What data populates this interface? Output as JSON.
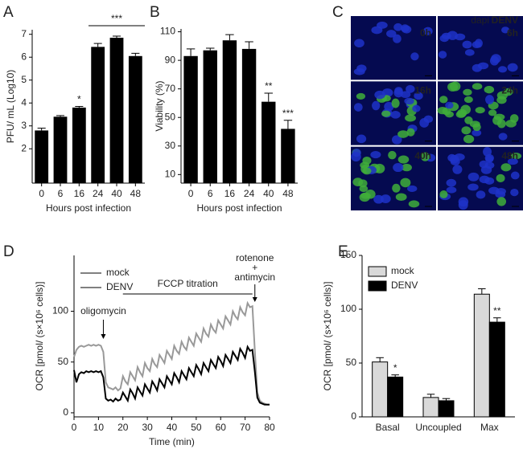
{
  "chart_data": [
    {
      "type": "bar",
      "panel": "A",
      "categories": [
        "0",
        "6",
        "16",
        "24",
        "40",
        "48"
      ],
      "values": [
        2.8,
        3.4,
        3.8,
        6.45,
        6.85,
        6.05
      ],
      "errors": [
        0.1,
        0.05,
        0.05,
        0.15,
        0.07,
        0.12
      ],
      "color": "#000000",
      "ylim": [
        0.5,
        7.2
      ],
      "yticks": [
        2,
        3,
        4,
        5,
        6,
        7
      ],
      "y_label": "PFU/ mL (Log10)",
      "x_label": "Hours post infection",
      "significance": [
        null,
        null,
        "*",
        null,
        null,
        null
      ],
      "bracket_label": "***"
    },
    {
      "type": "bar",
      "panel": "B",
      "categories": [
        "0",
        "6",
        "16",
        "24",
        "40",
        "48"
      ],
      "values": [
        93,
        97,
        104,
        98,
        61,
        42
      ],
      "errors": [
        5,
        1.5,
        4,
        5,
        6,
        6
      ],
      "color": "#000000",
      "ylim": [
        4,
        112
      ],
      "yticks": [
        10,
        30,
        50,
        70,
        90,
        110
      ],
      "y_label": "Viability (%)",
      "x_label": "Hours post infection",
      "significance": [
        null,
        null,
        null,
        null,
        "**",
        "***"
      ]
    },
    {
      "type": "image-grid",
      "panel": "C",
      "legend": [
        "dapi",
        "DENV"
      ],
      "legend_colors": [
        "#3f6fff",
        "#33cc33"
      ],
      "labels": [
        "0h",
        "6h",
        "16h",
        "24h",
        "40h",
        "48h"
      ]
    },
    {
      "type": "line",
      "panel": "D",
      "x_label": "Time (min)",
      "y_label": "OCR [pmol/ (s×10⁶ cells)]",
      "xlim": [
        0,
        80
      ],
      "xticks": [
        0,
        10,
        20,
        30,
        40,
        50,
        60,
        70,
        80
      ],
      "ylim": [
        -4,
        155
      ],
      "yticks": [
        0,
        50,
        100
      ],
      "annotations": [
        "oligomycin",
        "FCCP titration",
        "rotenone",
        "+",
        "antimycin"
      ],
      "x": [
        0,
        1,
        2,
        3,
        4,
        5,
        6,
        7,
        8,
        9,
        10,
        11,
        12,
        13,
        14,
        15,
        16,
        17,
        18,
        19,
        20,
        21,
        22,
        23,
        24,
        25,
        26,
        27,
        28,
        29,
        30,
        31,
        32,
        33,
        34,
        35,
        36,
        37,
        38,
        39,
        40,
        41,
        42,
        43,
        44,
        45,
        46,
        47,
        48,
        49,
        50,
        51,
        52,
        53,
        54,
        55,
        56,
        57,
        58,
        59,
        60,
        61,
        62,
        63,
        64,
        65,
        66,
        67,
        68,
        69,
        70,
        71,
        72,
        73,
        74,
        75,
        76,
        77,
        78,
        79,
        80
      ],
      "series": [
        {
          "name": "mock",
          "color": "#999999",
          "values": [
            55,
            62,
            65,
            66,
            65,
            66,
            67,
            66,
            67,
            66,
            67,
            66,
            60,
            30,
            25,
            24,
            23,
            25,
            22,
            24,
            36,
            31,
            28,
            40,
            36,
            32,
            45,
            40,
            36,
            49,
            44,
            41,
            53,
            48,
            45,
            57,
            53,
            49,
            61,
            57,
            53,
            66,
            61,
            58,
            70,
            65,
            62,
            74,
            70,
            66,
            78,
            74,
            70,
            83,
            78,
            75,
            87,
            82,
            79,
            91,
            87,
            83,
            95,
            91,
            87,
            100,
            95,
            92,
            104,
            99,
            96,
            108,
            104,
            105,
            60,
            20,
            12,
            10,
            9,
            8,
            8
          ]
        },
        {
          "name": "DENV",
          "color": "#000000",
          "values": [
            42,
            30,
            38,
            40,
            39,
            41,
            40,
            41,
            40,
            41,
            40,
            41,
            35,
            14,
            12,
            13,
            11,
            14,
            12,
            13,
            20,
            16,
            12,
            23,
            19,
            14,
            25,
            21,
            17,
            28,
            24,
            20,
            31,
            27,
            22,
            33,
            29,
            25,
            36,
            32,
            28,
            39,
            35,
            30,
            41,
            37,
            33,
            44,
            40,
            36,
            47,
            43,
            38,
            49,
            45,
            41,
            52,
            48,
            44,
            55,
            51,
            46,
            57,
            53,
            49,
            60,
            56,
            52,
            63,
            59,
            54,
            65,
            61,
            62,
            40,
            15,
            10,
            9,
            8,
            8,
            8
          ]
        }
      ]
    },
    {
      "type": "grouped-bar",
      "panel": "E",
      "categories": [
        "Basal",
        "Uncoupled",
        "Max"
      ],
      "y_label": "OCR [pmol/ (s×10⁶ cells)]",
      "ylim": [
        0,
        150
      ],
      "yticks": [
        0,
        50,
        100,
        150
      ],
      "significance": [
        "*",
        null,
        "**"
      ],
      "series": [
        {
          "name": "mock",
          "color": "#d9d9d9",
          "values": [
            51,
            18,
            114
          ],
          "errors": [
            4,
            3,
            5
          ]
        },
        {
          "name": "DENV",
          "color": "#000000",
          "values": [
            37,
            15,
            88
          ],
          "errors": [
            2,
            2,
            4
          ]
        }
      ]
    }
  ]
}
